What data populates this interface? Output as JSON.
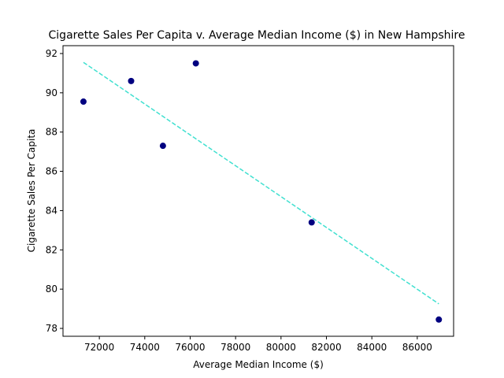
{
  "chart_data": {
    "type": "scatter",
    "title": "Cigarette Sales Per Capita v. Average Median Income ($) in New Hampshire",
    "xlabel": "Average Median Income ($)",
    "ylabel": "Cigarette Sales Per Capita",
    "xlim": [
      70400,
      87600
    ],
    "ylim": [
      77.6,
      92.4
    ],
    "x_ticks": [
      72000,
      74000,
      76000,
      78000,
      80000,
      82000,
      84000,
      86000
    ],
    "y_ticks": [
      78,
      80,
      82,
      84,
      86,
      88,
      90,
      92
    ],
    "grid": false,
    "point_color": "#000080",
    "trend_color": "#40e0d0",
    "points": [
      {
        "x": 71300,
        "y": 89.55
      },
      {
        "x": 73400,
        "y": 90.6
      },
      {
        "x": 74800,
        "y": 87.3
      },
      {
        "x": 76250,
        "y": 91.5
      },
      {
        "x": 81350,
        "y": 83.4
      },
      {
        "x": 86950,
        "y": 78.45
      }
    ],
    "trendline": {
      "x": [
        71300,
        86950
      ],
      "y": [
        91.55,
        79.25
      ]
    }
  }
}
